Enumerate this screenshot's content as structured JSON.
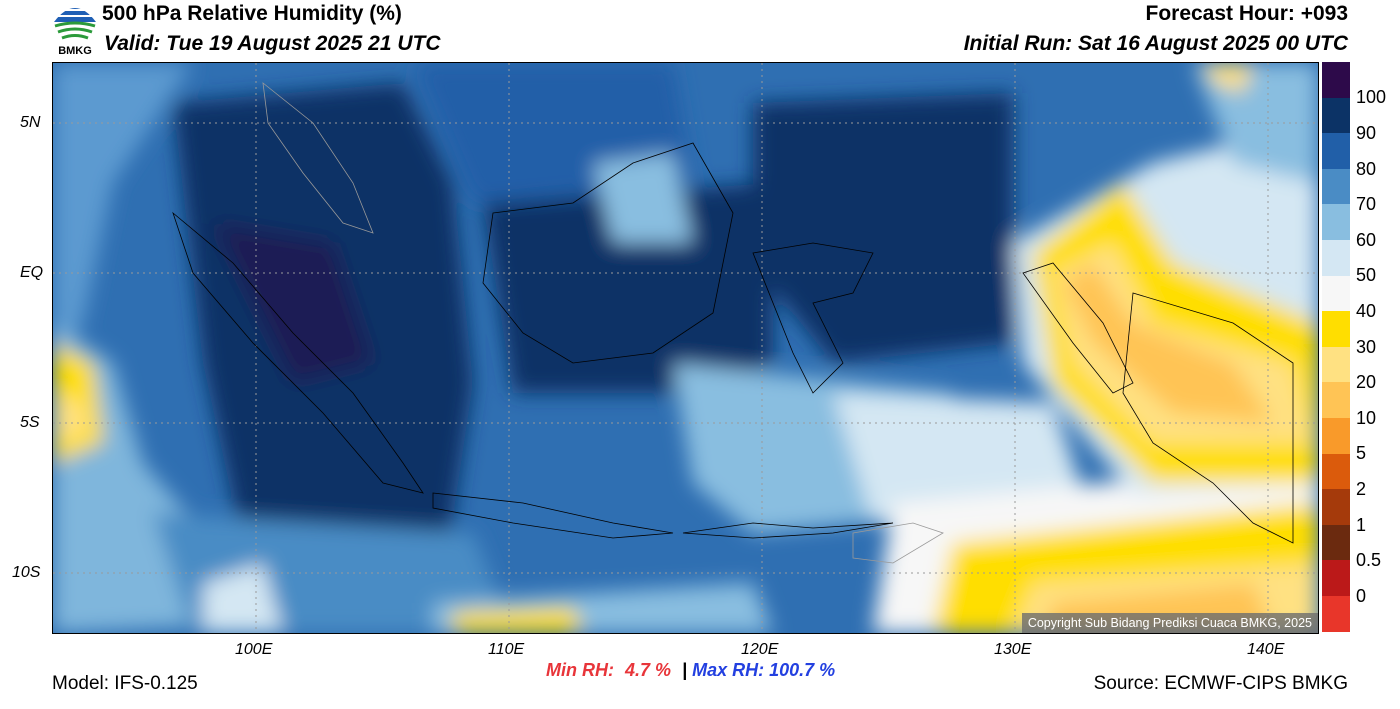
{
  "header": {
    "logo_text": "BMKG",
    "title": "500 hPa Relative Humidity (%)",
    "valid": "Valid: Tue 19 August 2025 21 UTC",
    "forecast_hour": "Forecast Hour: +093",
    "initial_run": "Initial Run: Sat 16 August 2025 00 UTC"
  },
  "map": {
    "lat_ticks": [
      "5N",
      "EQ",
      "5S",
      "10S"
    ],
    "lon_ticks": [
      "100E",
      "110E",
      "120E",
      "130E",
      "140E"
    ],
    "copyright": "Copyright Sub Bidang Prediksi Cuaca BMKG, 2025"
  },
  "colorbar": {
    "labels": [
      "100",
      "90",
      "80",
      "70",
      "60",
      "50",
      "40",
      "30",
      "20",
      "10",
      "5",
      "2",
      "1",
      "0.5",
      "0"
    ],
    "colors": [
      "#2d0a4a",
      "#0c3366",
      "#215fa8",
      "#4a8cc5",
      "#89bee0",
      "#d4e7f3",
      "#f7f7f7",
      "#ffde00",
      "#ffe182",
      "#ffc455",
      "#f99a2a",
      "#db5b0c",
      "#a53a0b",
      "#6b2a0f",
      "#bb1919",
      "#e8362a"
    ]
  },
  "footer": {
    "model": "Model: IFS-0.125",
    "min_label": "Min RH:",
    "min_value": "4.7 %",
    "separator": "|",
    "max_label": "Max RH:",
    "max_value": "100.7 %",
    "source": "Source: ECMWF-CIPS BMKG"
  }
}
